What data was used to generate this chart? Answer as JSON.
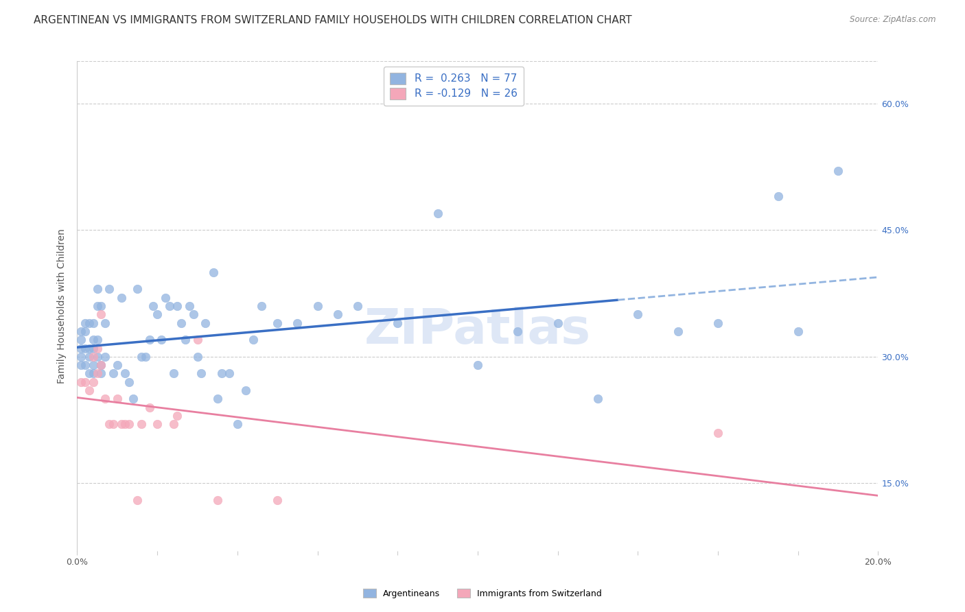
{
  "title": "ARGENTINEAN VS IMMIGRANTS FROM SWITZERLAND FAMILY HOUSEHOLDS WITH CHILDREN CORRELATION CHART",
  "source": "Source: ZipAtlas.com",
  "ylabel": "Family Households with Children",
  "xlim": [
    0.0,
    0.2
  ],
  "ylim": [
    0.07,
    0.65
  ],
  "yticks": [
    0.15,
    0.3,
    0.45,
    0.6
  ],
  "ytick_labels": [
    "15.0%",
    "30.0%",
    "45.0%",
    "60.0%"
  ],
  "xticks": [
    0.0,
    0.02,
    0.04,
    0.06,
    0.08,
    0.1,
    0.12,
    0.14,
    0.16,
    0.18,
    0.2
  ],
  "color_blue": "#92b4e0",
  "color_pink": "#f4a7b9",
  "line_blue": "#3a6fc4",
  "line_pink": "#e87fa0",
  "line_blue_dashed": "#92b4e0",
  "R_blue": 0.263,
  "N_blue": 77,
  "R_pink": -0.129,
  "N_pink": 26,
  "blue_x": [
    0.001,
    0.001,
    0.001,
    0.001,
    0.001,
    0.002,
    0.002,
    0.002,
    0.002,
    0.003,
    0.003,
    0.003,
    0.003,
    0.004,
    0.004,
    0.004,
    0.004,
    0.004,
    0.005,
    0.005,
    0.005,
    0.005,
    0.006,
    0.006,
    0.006,
    0.007,
    0.007,
    0.008,
    0.009,
    0.01,
    0.011,
    0.012,
    0.013,
    0.014,
    0.015,
    0.016,
    0.017,
    0.018,
    0.019,
    0.02,
    0.021,
    0.022,
    0.023,
    0.024,
    0.025,
    0.026,
    0.027,
    0.028,
    0.029,
    0.03,
    0.031,
    0.032,
    0.034,
    0.035,
    0.036,
    0.038,
    0.04,
    0.042,
    0.044,
    0.046,
    0.05,
    0.055,
    0.06,
    0.065,
    0.07,
    0.08,
    0.09,
    0.1,
    0.11,
    0.12,
    0.13,
    0.14,
    0.15,
    0.16,
    0.175,
    0.18,
    0.19
  ],
  "blue_y": [
    0.3,
    0.31,
    0.32,
    0.33,
    0.29,
    0.29,
    0.31,
    0.33,
    0.34,
    0.28,
    0.3,
    0.31,
    0.34,
    0.28,
    0.29,
    0.31,
    0.32,
    0.34,
    0.36,
    0.38,
    0.3,
    0.32,
    0.28,
    0.29,
    0.36,
    0.3,
    0.34,
    0.38,
    0.28,
    0.29,
    0.37,
    0.28,
    0.27,
    0.25,
    0.38,
    0.3,
    0.3,
    0.32,
    0.36,
    0.35,
    0.32,
    0.37,
    0.36,
    0.28,
    0.36,
    0.34,
    0.32,
    0.36,
    0.35,
    0.3,
    0.28,
    0.34,
    0.4,
    0.25,
    0.28,
    0.28,
    0.22,
    0.26,
    0.32,
    0.36,
    0.34,
    0.34,
    0.36,
    0.35,
    0.36,
    0.34,
    0.47,
    0.29,
    0.33,
    0.34,
    0.25,
    0.35,
    0.33,
    0.34,
    0.49,
    0.33,
    0.52
  ],
  "pink_x": [
    0.001,
    0.002,
    0.003,
    0.004,
    0.004,
    0.005,
    0.005,
    0.006,
    0.006,
    0.007,
    0.008,
    0.009,
    0.01,
    0.011,
    0.012,
    0.013,
    0.015,
    0.016,
    0.018,
    0.02,
    0.024,
    0.025,
    0.03,
    0.035,
    0.05,
    0.16
  ],
  "pink_y": [
    0.27,
    0.27,
    0.26,
    0.27,
    0.3,
    0.28,
    0.31,
    0.29,
    0.35,
    0.25,
    0.22,
    0.22,
    0.25,
    0.22,
    0.22,
    0.22,
    0.13,
    0.22,
    0.24,
    0.22,
    0.22,
    0.23,
    0.32,
    0.13,
    0.13,
    0.21
  ],
  "background_color": "#ffffff",
  "grid_color": "#cccccc",
  "watermark": "ZIPatlas",
  "watermark_color": "#c8d8f0",
  "title_fontsize": 11,
  "axis_label_fontsize": 10,
  "tick_fontsize": 9,
  "legend_fontsize": 11,
  "blue_line_solid_end": 0.135,
  "pink_line_end": 0.2
}
